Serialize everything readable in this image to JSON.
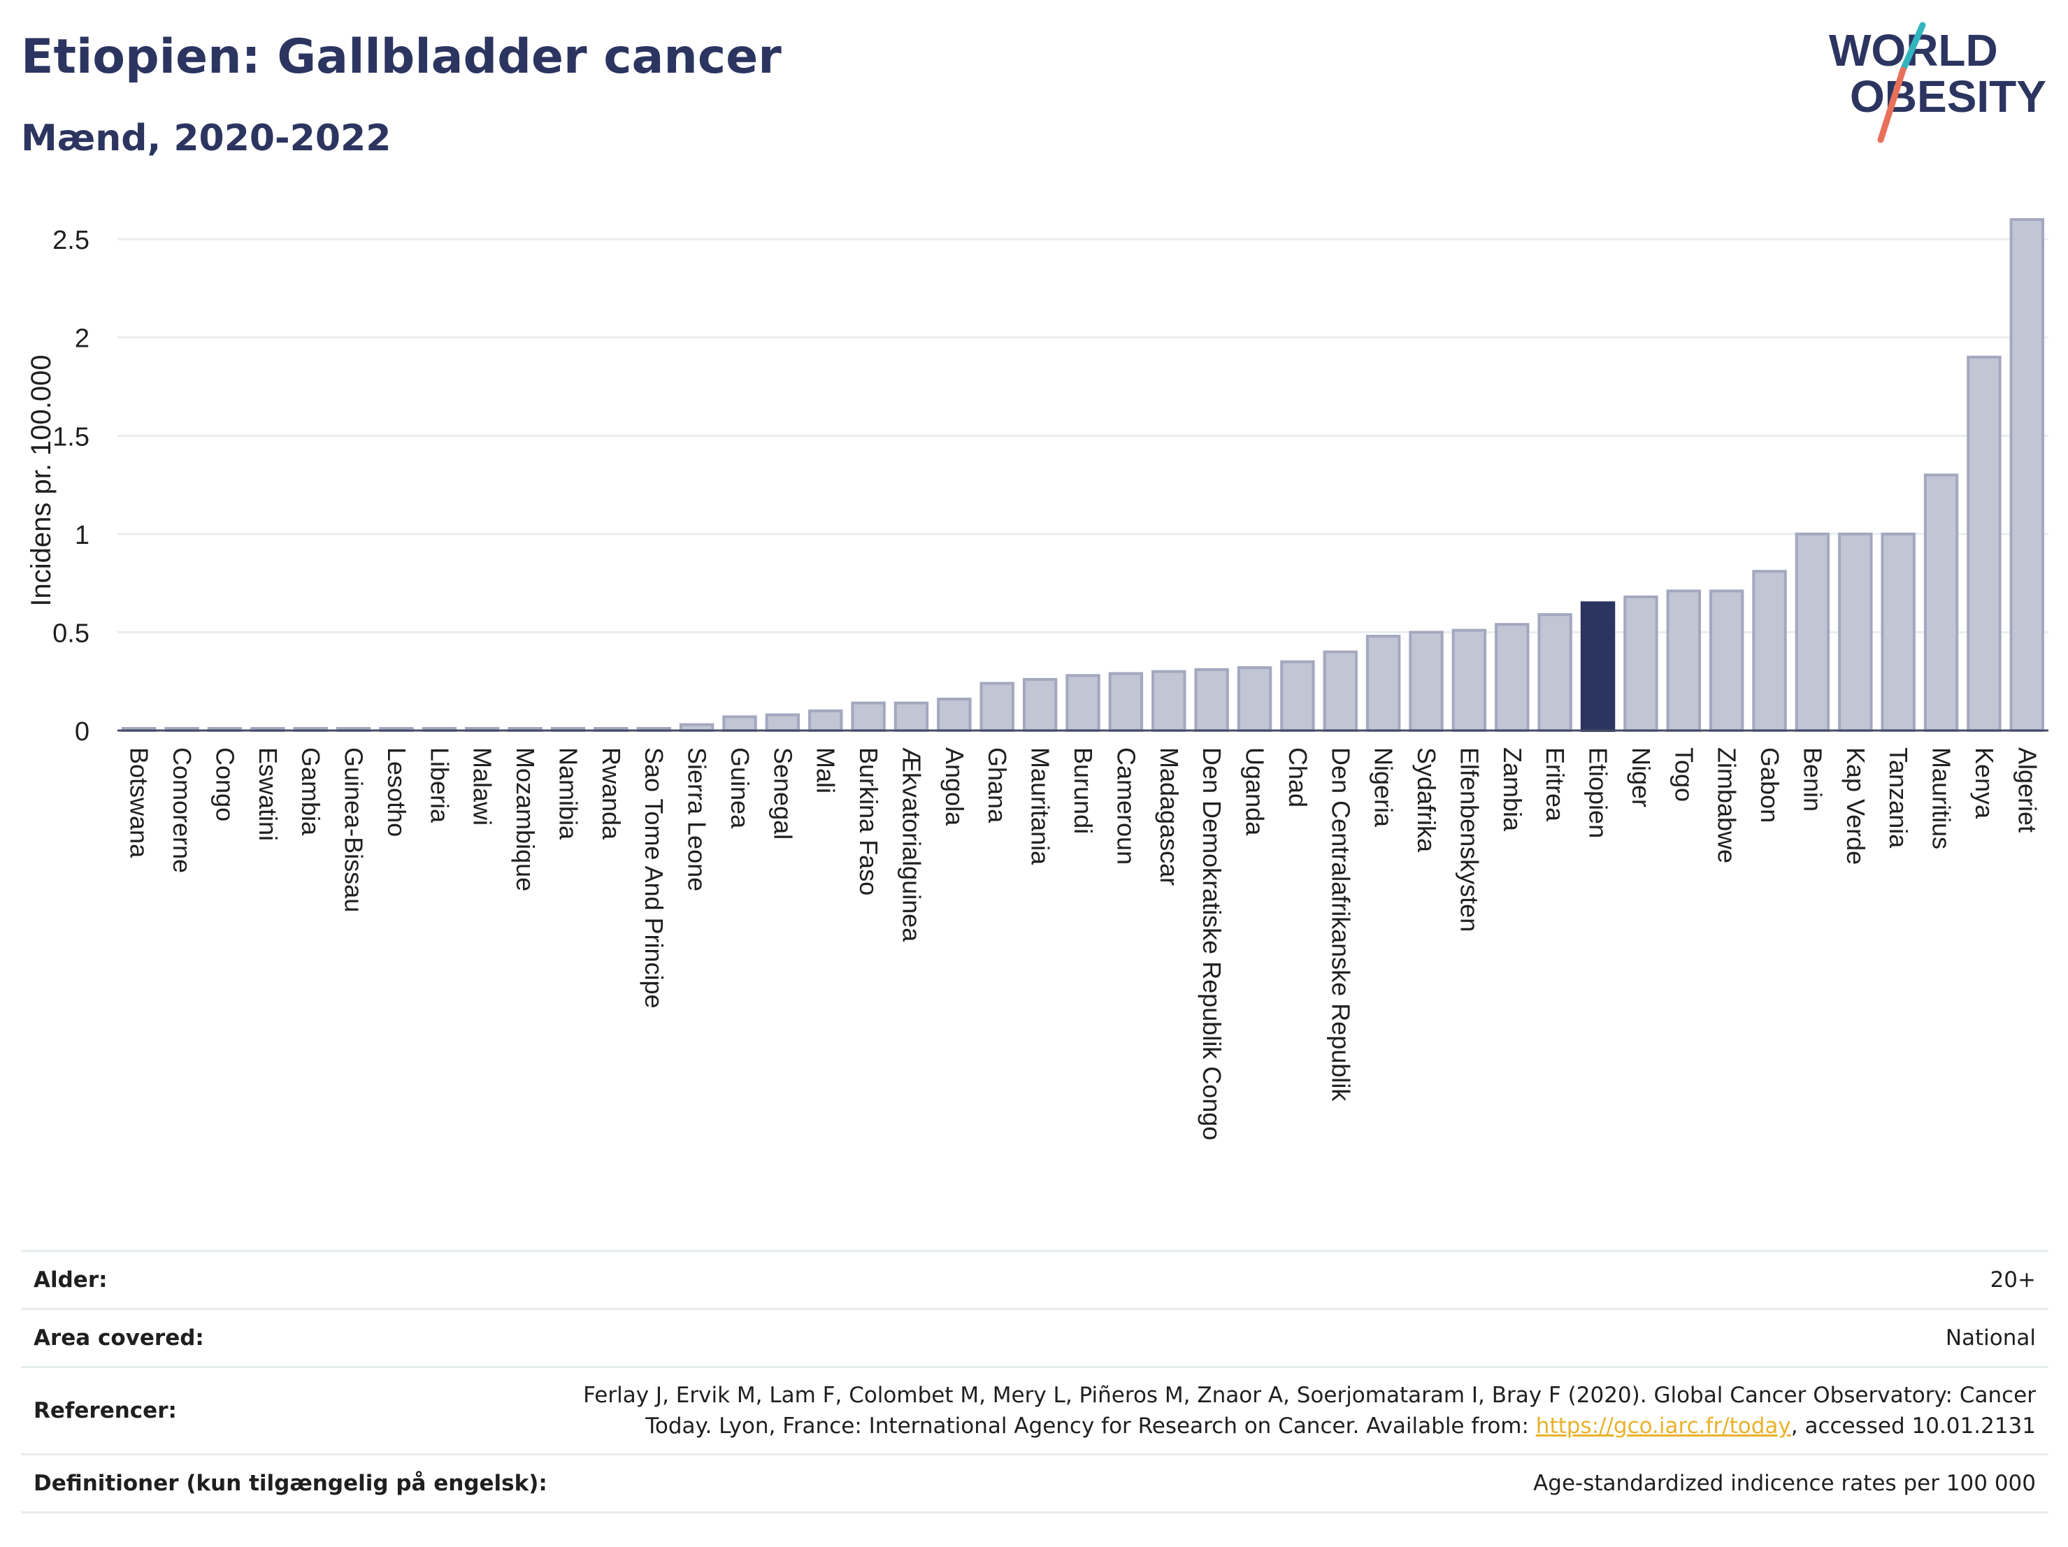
{
  "header": {
    "title": "Etiopien: Gallbladder cancer",
    "subtitle": "Mænd, 2020-2022",
    "logo_line1": "WORLD",
    "logo_line2": "OBESITY"
  },
  "colors": {
    "title": "#2c3560",
    "bar": "#c1c5d4",
    "bar_border": "#a3a8bf",
    "highlight": "#2c3560",
    "grid": "#e9edf0",
    "logo_text": "#2c3560",
    "logo_teal": "#33b5c0",
    "logo_coral": "#e8705a",
    "link": "#e9b22b"
  },
  "chart_data": {
    "type": "bar",
    "title": "Etiopien: Gallbladder cancer",
    "subtitle": "Mænd, 2020-2022",
    "ylabel": "Incidens pr. 100.000",
    "xlabel": "",
    "ylim": [
      0,
      2.65
    ],
    "yticks": [
      0,
      0.5,
      1,
      1.5,
      2,
      2.5
    ],
    "ytick_labels": [
      "0",
      "0.5",
      "1",
      "1.5",
      "2",
      "2.5"
    ],
    "grid": true,
    "highlight": "Etiopien",
    "categories": [
      "Botswana",
      "Comorerne",
      "Congo",
      "Eswatini",
      "Gambia",
      "Guinea-Bissau",
      "Lesotho",
      "Liberia",
      "Malawi",
      "Mozambique",
      "Namibia",
      "Rwanda",
      "Sao Tome And Principe",
      "Sierra Leone",
      "Guinea",
      "Senegal",
      "Mali",
      "Burkina Faso",
      "Ækvatorialguinea",
      "Angola",
      "Ghana",
      "Mauritania",
      "Burundi",
      "Cameroun",
      "Madagascar",
      "Den Demokratiske Republik Congo",
      "Uganda",
      "Chad",
      "Den Centralafrikanske Republik",
      "Nigeria",
      "Sydafrika",
      "Elfenbenskysten",
      "Zambia",
      "Eritrea",
      "Etiopien",
      "Niger",
      "Togo",
      "Zimbabwe",
      "Gabon",
      "Benin",
      "Kap Verde",
      "Tanzania",
      "Mauritius",
      "Kenya",
      "Algeriet"
    ],
    "values": [
      0.01,
      0.01,
      0.01,
      0.01,
      0.01,
      0.01,
      0.01,
      0.01,
      0.01,
      0.01,
      0.01,
      0.01,
      0.01,
      0.03,
      0.07,
      0.08,
      0.1,
      0.14,
      0.14,
      0.16,
      0.24,
      0.26,
      0.28,
      0.29,
      0.3,
      0.31,
      0.32,
      0.35,
      0.4,
      0.48,
      0.5,
      0.51,
      0.54,
      0.59,
      0.65,
      0.68,
      0.71,
      0.71,
      0.81,
      1.0,
      1.0,
      1.0,
      1.3,
      1.9,
      2.6
    ]
  },
  "info": {
    "age_label": "Alder:",
    "age_value": "20+",
    "area_label": "Area covered:",
    "area_value": "National",
    "ref_label": "Referencer:",
    "ref_line1": "Ferlay J, Ervik M, Lam F, Colombet M, Mery L, Piñeros M, Znaor A, Soerjomataram I, Bray F (2020). Global Cancer Observatory: Cancer",
    "ref_line2_pre": "Today. Lyon, France: International Agency for Research on Cancer. Available from: ",
    "ref_link": "https://gco.iarc.fr/today",
    "ref_line2_post": ", accessed 10.01.2131",
    "def_label": "Definitioner (kun tilgængelig på engelsk):",
    "def_value": "Age-standardized indicence rates per 100 000"
  }
}
